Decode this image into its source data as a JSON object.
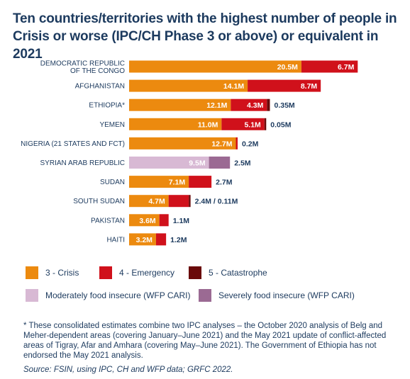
{
  "colors": {
    "crisis": "#ec8a0f",
    "emergency": "#d0111b",
    "catastrophe": "#6a0a0a",
    "moderate": "#d8b9d4",
    "severe": "#9b6a93"
  },
  "chart_data": {
    "type": "bar",
    "orientation": "horizontal",
    "stacked": true,
    "title": "Ten countries/territories with the highest number of people in Crisis or worse (IPC/CH Phase 3 or above) or equivalent in 2021",
    "unit": "M",
    "categories": [
      [
        "DEMOCRATIC REPUBLIC",
        "OF THE CONGO"
      ],
      [
        "AFGHANISTAN"
      ],
      [
        "ETHIOPIA*"
      ],
      [
        "YEMEN"
      ],
      [
        "NIGERIA (21 STATES AND FCT)"
      ],
      [
        "SYRIAN ARAB REPUBLIC"
      ],
      [
        "SUDAN"
      ],
      [
        "SOUTH SUDAN"
      ],
      [
        "PAKISTAN"
      ],
      [
        "HAITI"
      ]
    ],
    "rows": [
      {
        "segments": [
          {
            "series": "crisis",
            "value": 20.5,
            "label": "20.5M"
          },
          {
            "series": "emergency",
            "value": 6.7,
            "label": "6.7M"
          }
        ]
      },
      {
        "segments": [
          {
            "series": "crisis",
            "value": 14.1,
            "label": "14.1M"
          },
          {
            "series": "emergency",
            "value": 8.7,
            "label": "8.7M"
          }
        ]
      },
      {
        "segments": [
          {
            "series": "crisis",
            "value": 12.1,
            "label": "12.1M"
          },
          {
            "series": "emergency",
            "value": 4.3,
            "label": "4.3M"
          },
          {
            "series": "catastrophe",
            "value": 0.35
          }
        ],
        "tail_label": "0.35M"
      },
      {
        "segments": [
          {
            "series": "crisis",
            "value": 11.0,
            "label": "11.0M"
          },
          {
            "series": "emergency",
            "value": 5.1,
            "label": "5.1M"
          },
          {
            "series": "catastrophe",
            "value": 0.05
          }
        ],
        "tail_label": "0.05M"
      },
      {
        "segments": [
          {
            "series": "crisis",
            "value": 12.7,
            "label": "12.7M"
          },
          {
            "series": "emergency",
            "value": 0.2
          }
        ],
        "tail_label": "0.2M"
      },
      {
        "segments": [
          {
            "series": "moderate",
            "value": 9.5,
            "label": "9.5M"
          },
          {
            "series": "severe",
            "value": 2.5
          }
        ],
        "tail_label": "2.5M"
      },
      {
        "segments": [
          {
            "series": "crisis",
            "value": 7.1,
            "label": "7.1M"
          },
          {
            "series": "emergency",
            "value": 2.7
          }
        ],
        "tail_label": "2.7M"
      },
      {
        "segments": [
          {
            "series": "crisis",
            "value": 4.7,
            "label": "4.7M"
          },
          {
            "series": "emergency",
            "value": 2.4
          },
          {
            "series": "catastrophe",
            "value": 0.11
          }
        ],
        "tail_label": "2.4M / 0.11M"
      },
      {
        "segments": [
          {
            "series": "crisis",
            "value": 3.6,
            "label": "3.6M"
          },
          {
            "series": "emergency",
            "value": 1.1
          }
        ],
        "tail_label": "1.1M"
      },
      {
        "segments": [
          {
            "series": "crisis",
            "value": 3.2,
            "label": "3.2M"
          },
          {
            "series": "emergency",
            "value": 1.2
          }
        ],
        "tail_label": "1.2M"
      }
    ],
    "legend": [
      {
        "series": "crisis",
        "label": "3 - Crisis"
      },
      {
        "series": "emergency",
        "label": "4 - Emergency"
      },
      {
        "series": "catastrophe",
        "label": "5 - Catastrophe"
      },
      {
        "series": "moderate",
        "label": "Moderately food insecure (WFP CARI)"
      },
      {
        "series": "severe",
        "label": "Severely food insecure (WFP CARI)"
      }
    ]
  },
  "footnote": "* These consolidated estimates combine two IPC analyses – the October 2020 analysis of Belg and Meher-dependent areas (covering January–June 2021) and the May 2021 update of conflict-affected areas of Tigray, Afar and Amhara (covering May–June 2021). The Government of Ethiopia has not endorsed the May 2021 analysis.",
  "source": "Source: FSIN, using IPC, CH and WFP data; GRFC 2022."
}
